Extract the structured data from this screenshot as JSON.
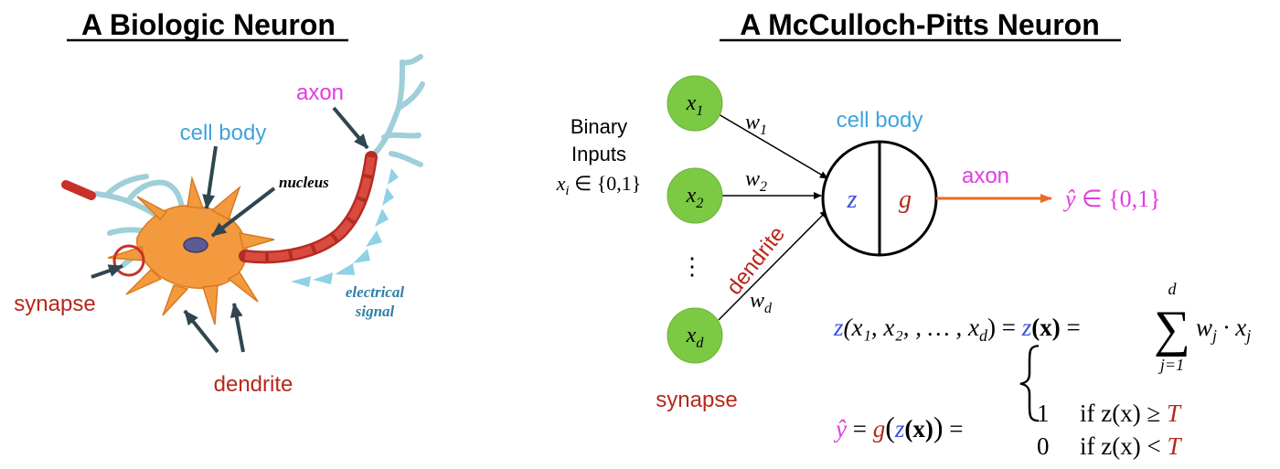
{
  "left_panel": {
    "title": "A Biologic Neuron",
    "labels": {
      "axon": "axon",
      "cell_body": "cell body",
      "nucleus": "nucleus",
      "synapse": "synapse",
      "dendrite": "dendrite",
      "electrical_1": "electrical",
      "electrical_2": "signal"
    }
  },
  "right_panel": {
    "title": "A McCulloch-Pitts Neuron",
    "inputs_label_1": "Binary",
    "inputs_label_2": "Inputs",
    "inputs_domain_var": "x",
    "inputs_domain_sub": "i",
    "inputs_domain_set": " ∈ {0,1}",
    "nodes": [
      {
        "var": "x",
        "sub": "1"
      },
      {
        "var": "x",
        "sub": "2"
      },
      {
        "var": "x",
        "sub": "d"
      }
    ],
    "vdots": "⋮",
    "weights": [
      {
        "var": "w",
        "sub": "1"
      },
      {
        "var": "w",
        "sub": "2"
      },
      {
        "var": "w",
        "sub": "d"
      }
    ],
    "dendrite": "dendrite",
    "synapse": "synapse",
    "cell_body": "cell body",
    "z": "z",
    "g": "g",
    "axon": "axon",
    "output_var": "ŷ",
    "output_set": " ∈ {0,1}",
    "eq1": {
      "z1": "z",
      "args": "(x₁, x₂, , … , x",
      "args_sub": "d",
      "close": ")",
      "eq": " = ",
      "z2": "z",
      "bx": "(x)",
      "eq2": " = ",
      "sum": "∑",
      "sum_top": "d",
      "sum_bottom": "j=1",
      "term": "w",
      "term_sub": "j",
      "dot": " · x",
      "dot_sub": "j"
    },
    "eq2": {
      "yhat": "ŷ",
      "eq": " = ",
      "g": "g",
      "open": "(",
      "z": "z",
      "bx": "(x)",
      "close": ")",
      "eq2": " = ",
      "case1_val": "1",
      "case1_cond": "if z(x) ≥ ",
      "case1_T": "T",
      "case2_val": "0",
      "case2_cond": "if z(x) < ",
      "case2_T": "T"
    }
  },
  "colors": {
    "node_green": "#7cc944",
    "red_label": "#b8271b",
    "blue_label": "#3fa4dc",
    "magenta": "#e23be0",
    "axon_orange": "#ec6a22",
    "z_blue": "#3b4fd6",
    "neuron_orange": "#f39a3f",
    "axon_red": "#c8312a"
  }
}
